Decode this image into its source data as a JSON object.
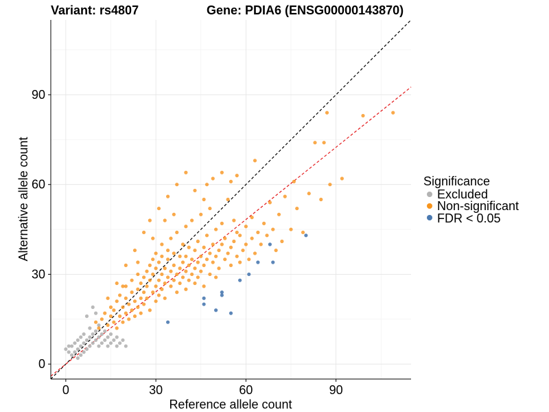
{
  "chart_data": {
    "type": "scatter",
    "title_left": "Variant: rs4807",
    "title_right": "Gene: PDIA6 (ENSG00000143870)",
    "xlabel": "Reference allele count",
    "ylabel": "Alternative allele count",
    "xlim": [
      -5,
      115
    ],
    "ylim": [
      -5,
      115
    ],
    "x_ticks": [
      0,
      30,
      60,
      90
    ],
    "y_ticks": [
      0,
      30,
      60,
      90
    ],
    "grid": true,
    "reference_lines": [
      {
        "name": "identity",
        "slope": 1.0,
        "intercept": 0,
        "color": "#000000",
        "dashed": true
      },
      {
        "name": "fit",
        "slope": 0.805,
        "intercept": 0,
        "color": "#e41a1c",
        "dashed": true
      }
    ],
    "legend": {
      "title": "Significance",
      "position": "right",
      "entries": [
        {
          "label": "Excluded",
          "color": "#b3b3b3"
        },
        {
          "label": "Non-significant",
          "color": "#f7941d"
        },
        {
          "label": "FDR < 0.05",
          "color": "#4a79b0"
        }
      ]
    },
    "series": [
      {
        "name": "Excluded",
        "color": "#b3b3b3",
        "points": [
          [
            0,
            5
          ],
          [
            1,
            4
          ],
          [
            1,
            6
          ],
          [
            2,
            3
          ],
          [
            2,
            6
          ],
          [
            3,
            4
          ],
          [
            3,
            7
          ],
          [
            4,
            2
          ],
          [
            4,
            5
          ],
          [
            4,
            8
          ],
          [
            5,
            3
          ],
          [
            5,
            6
          ],
          [
            5,
            9
          ],
          [
            6,
            4
          ],
          [
            6,
            7
          ],
          [
            6,
            10
          ],
          [
            7,
            5
          ],
          [
            7,
            8
          ],
          [
            7,
            16
          ],
          [
            8,
            6
          ],
          [
            8,
            9
          ],
          [
            8,
            12
          ],
          [
            9,
            7
          ],
          [
            9,
            10
          ],
          [
            9,
            19
          ],
          [
            10,
            8
          ],
          [
            10,
            11
          ],
          [
            10,
            17
          ],
          [
            11,
            6
          ],
          [
            11,
            9
          ],
          [
            11,
            13
          ],
          [
            12,
            7
          ],
          [
            12,
            10
          ],
          [
            13,
            8
          ],
          [
            13,
            11
          ],
          [
            14,
            6
          ],
          [
            14,
            9
          ],
          [
            15,
            7
          ],
          [
            15,
            10
          ],
          [
            16,
            8
          ],
          [
            17,
            6
          ],
          [
            17,
            9
          ],
          [
            18,
            7
          ],
          [
            19,
            8
          ],
          [
            20,
            6
          ]
        ]
      },
      {
        "name": "Non-significant",
        "color": "#f7941d",
        "points": [
          [
            10,
            14
          ],
          [
            11,
            12
          ],
          [
            12,
            15
          ],
          [
            13,
            17
          ],
          [
            14,
            13
          ],
          [
            15,
            16
          ],
          [
            15,
            19
          ],
          [
            16,
            14
          ],
          [
            16,
            18
          ],
          [
            17,
            21
          ],
          [
            17,
            12
          ],
          [
            18,
            16
          ],
          [
            18,
            23
          ],
          [
            19,
            19
          ],
          [
            19,
            14
          ],
          [
            20,
            22
          ],
          [
            20,
            17
          ],
          [
            20,
            26
          ],
          [
            21,
            20
          ],
          [
            21,
            15
          ],
          [
            22,
            24
          ],
          [
            22,
            18
          ],
          [
            22,
            28
          ],
          [
            23,
            21
          ],
          [
            23,
            16
          ],
          [
            24,
            25
          ],
          [
            24,
            19
          ],
          [
            24,
            30
          ],
          [
            25,
            22
          ],
          [
            25,
            27
          ],
          [
            25,
            17
          ],
          [
            26,
            24
          ],
          [
            26,
            29
          ],
          [
            26,
            20
          ],
          [
            27,
            26
          ],
          [
            27,
            31
          ],
          [
            27,
            22
          ],
          [
            28,
            28
          ],
          [
            28,
            33
          ],
          [
            28,
            18
          ],
          [
            29,
            24
          ],
          [
            29,
            30
          ],
          [
            29,
            35
          ],
          [
            30,
            26
          ],
          [
            30,
            32
          ],
          [
            30,
            21
          ],
          [
            30,
            37
          ],
          [
            31,
            28
          ],
          [
            31,
            34
          ],
          [
            31,
            23
          ],
          [
            32,
            30
          ],
          [
            32,
            25
          ],
          [
            32,
            36
          ],
          [
            32,
            40
          ],
          [
            33,
            27
          ],
          [
            33,
            32
          ],
          [
            33,
            22
          ],
          [
            34,
            29
          ],
          [
            34,
            35
          ],
          [
            34,
            38
          ],
          [
            35,
            31
          ],
          [
            35,
            26
          ],
          [
            35,
            42
          ],
          [
            36,
            28
          ],
          [
            36,
            33
          ],
          [
            36,
            37
          ],
          [
            37,
            30
          ],
          [
            37,
            24
          ],
          [
            37,
            44
          ],
          [
            38,
            32
          ],
          [
            38,
            27
          ],
          [
            38,
            36
          ],
          [
            39,
            34
          ],
          [
            39,
            29
          ],
          [
            39,
            40
          ],
          [
            40,
            31
          ],
          [
            40,
            36
          ],
          [
            40,
            46
          ],
          [
            40,
            25
          ],
          [
            41,
            33
          ],
          [
            41,
            28
          ],
          [
            41,
            39
          ],
          [
            42,
            35
          ],
          [
            42,
            30
          ],
          [
            42,
            48
          ],
          [
            43,
            32
          ],
          [
            43,
            38
          ],
          [
            43,
            27
          ],
          [
            44,
            34
          ],
          [
            44,
            41
          ],
          [
            44,
            29
          ],
          [
            45,
            36
          ],
          [
            45,
            31
          ],
          [
            45,
            50
          ],
          [
            46,
            33
          ],
          [
            46,
            39
          ],
          [
            46,
            26
          ],
          [
            47,
            35
          ],
          [
            47,
            43
          ],
          [
            48,
            37
          ],
          [
            48,
            30
          ],
          [
            48,
            52
          ],
          [
            49,
            34
          ],
          [
            49,
            40
          ],
          [
            50,
            36
          ],
          [
            50,
            45
          ],
          [
            50,
            29
          ],
          [
            51,
            38
          ],
          [
            51,
            32
          ],
          [
            52,
            40
          ],
          [
            52,
            47
          ],
          [
            53,
            35
          ],
          [
            53,
            42
          ],
          [
            54,
            37
          ],
          [
            54,
            55
          ],
          [
            55,
            39
          ],
          [
            55,
            33
          ],
          [
            56,
            41
          ],
          [
            56,
            48
          ],
          [
            57,
            36
          ],
          [
            57,
            44
          ],
          [
            58,
            43
          ],
          [
            58,
            34
          ],
          [
            59,
            38
          ],
          [
            60,
            46
          ],
          [
            60,
            40
          ],
          [
            61,
            35
          ],
          [
            62,
            42
          ],
          [
            62,
            49
          ],
          [
            63,
            37
          ],
          [
            64,
            44
          ],
          [
            65,
            40
          ],
          [
            66,
            47
          ],
          [
            67,
            43
          ],
          [
            68,
            54
          ],
          [
            69,
            45
          ],
          [
            70,
            38
          ],
          [
            71,
            50
          ],
          [
            72,
            41
          ],
          [
            73,
            56
          ],
          [
            75,
            45
          ],
          [
            76,
            61
          ],
          [
            77,
            52
          ],
          [
            79,
            44
          ],
          [
            81,
            57
          ],
          [
            83,
            74
          ],
          [
            85,
            55
          ],
          [
            86,
            74
          ],
          [
            87,
            84
          ],
          [
            88,
            60
          ],
          [
            92,
            62
          ],
          [
            99,
            83
          ],
          [
            109,
            84
          ],
          [
            14,
            22
          ],
          [
            17,
            27
          ],
          [
            20,
            33
          ],
          [
            23,
            38
          ],
          [
            26,
            44
          ],
          [
            28,
            48
          ],
          [
            31,
            52
          ],
          [
            34,
            56
          ],
          [
            37,
            60
          ],
          [
            40,
            64
          ],
          [
            43,
            58
          ],
          [
            46,
            55
          ],
          [
            47,
            60
          ],
          [
            49,
            62
          ],
          [
            52,
            64
          ],
          [
            55,
            61
          ],
          [
            57,
            63
          ],
          [
            63,
            68
          ],
          [
            33,
            48
          ],
          [
            36,
            50
          ],
          [
            29,
            42
          ],
          [
            24,
            34
          ],
          [
            19,
            26
          ]
        ]
      },
      {
        "name": "FDR < 0.05",
        "color": "#4a79b0",
        "points": [
          [
            34,
            14
          ],
          [
            46,
            20
          ],
          [
            50,
            18
          ],
          [
            52,
            23
          ],
          [
            55,
            17
          ],
          [
            58,
            28
          ],
          [
            61,
            30
          ],
          [
            64,
            34
          ],
          [
            68,
            40
          ],
          [
            69,
            34
          ],
          [
            80,
            43
          ],
          [
            46,
            22
          ],
          [
            52,
            24
          ]
        ]
      }
    ]
  }
}
